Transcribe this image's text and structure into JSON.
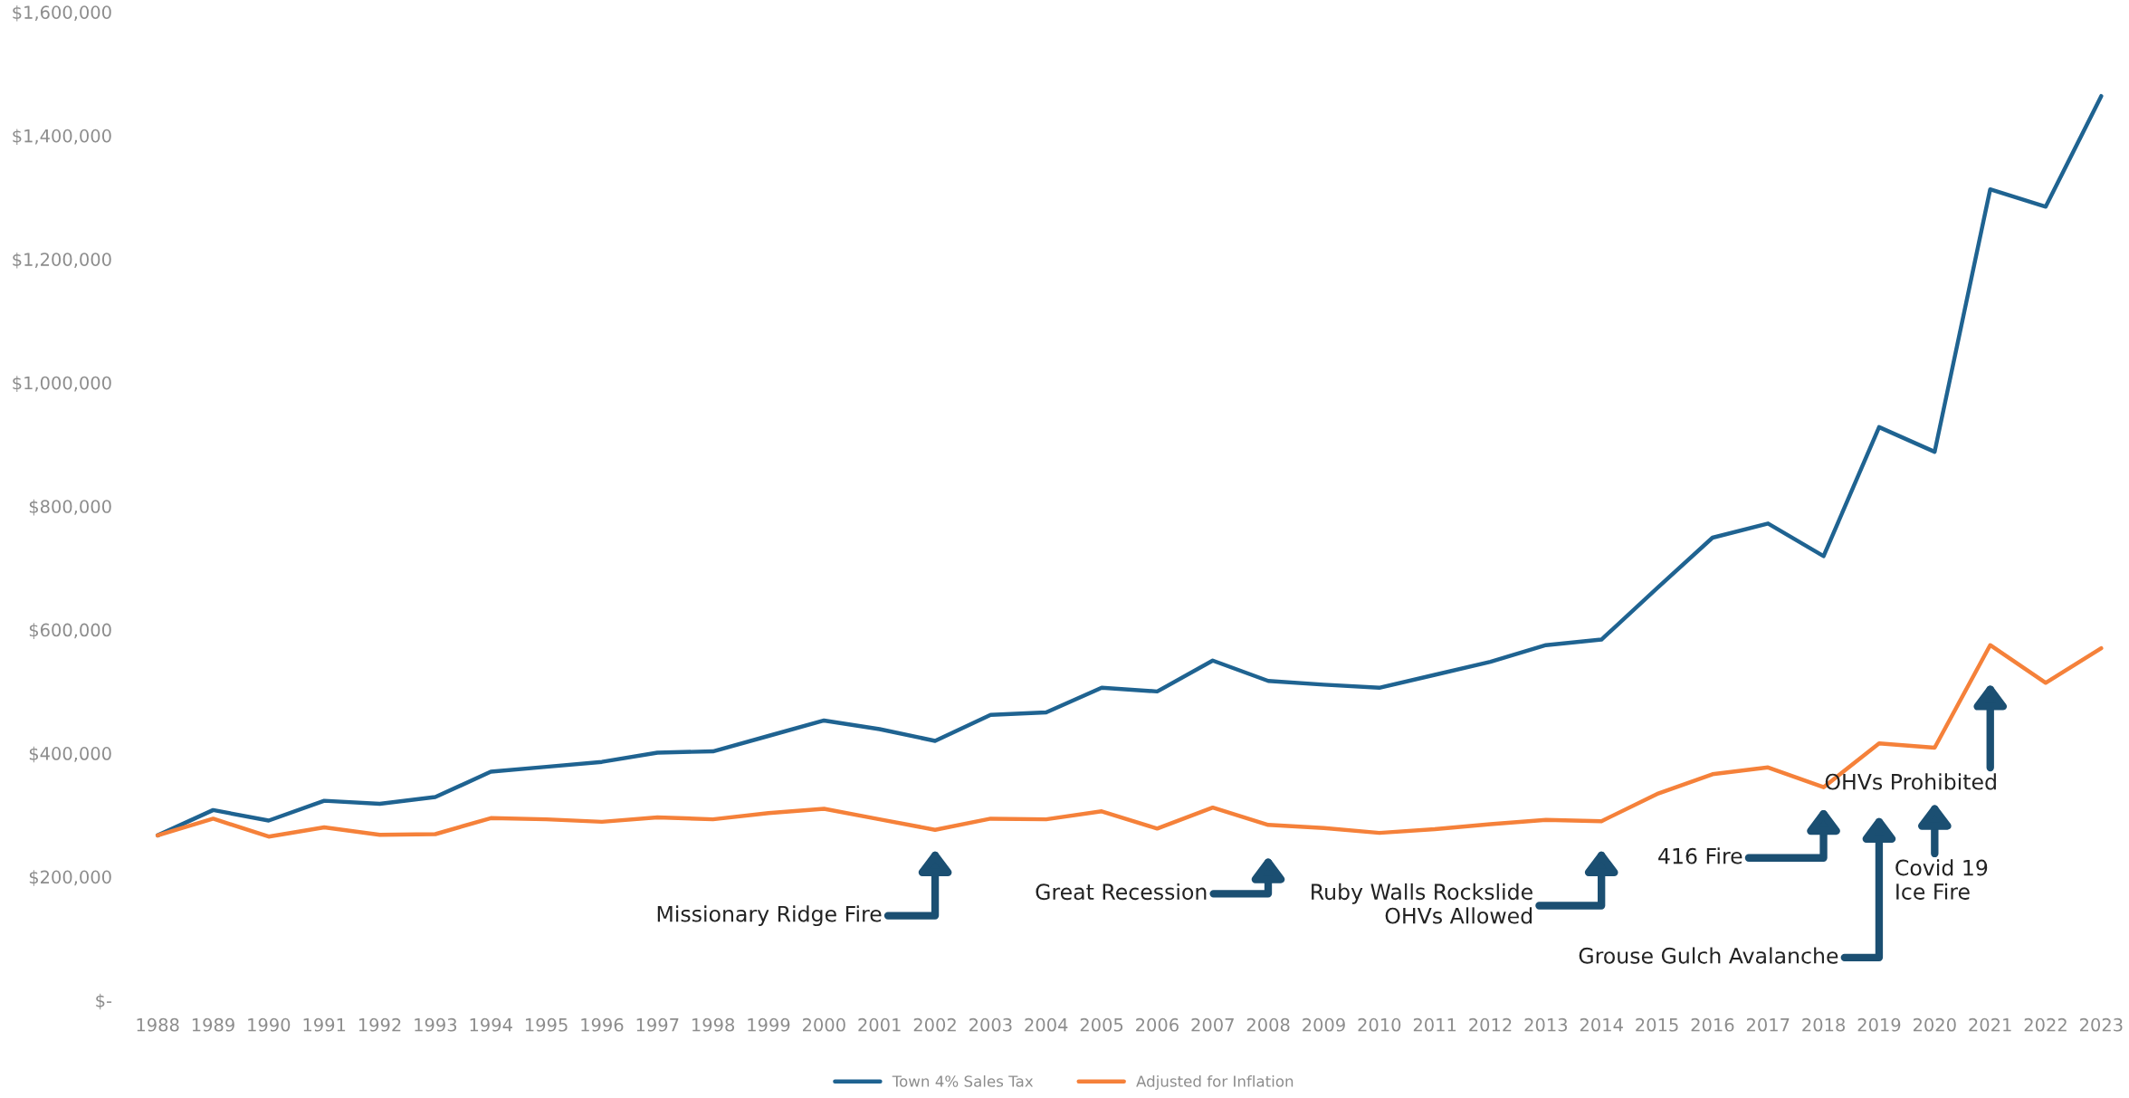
{
  "chart_data": {
    "type": "line",
    "categories": [
      "1988",
      "1989",
      "1990",
      "1991",
      "1992",
      "1993",
      "1994",
      "1995",
      "1996",
      "1997",
      "1998",
      "1999",
      "2000",
      "2001",
      "2002",
      "2003",
      "2004",
      "2005",
      "2006",
      "2007",
      "2008",
      "2009",
      "2010",
      "2011",
      "2012",
      "2013",
      "2014",
      "2015",
      "2016",
      "2017",
      "2018",
      "2019",
      "2020",
      "2021",
      "2022",
      "2023"
    ],
    "series": [
      {
        "name": "Town 4% Sales Tax",
        "color": "#1f6391",
        "values": [
          267000,
          308000,
          291000,
          323000,
          318000,
          329000,
          370000,
          378000,
          386000,
          401000,
          403000,
          428000,
          453000,
          439000,
          420000,
          462000,
          466000,
          506000,
          500000,
          550000,
          517000,
          511000,
          506000,
          527000,
          548000,
          575000,
          584000,
          667000,
          749000,
          772000,
          719000,
          928000,
          888000,
          1313000,
          1285000,
          1464000
        ]
      },
      {
        "name": "Adjusted for Inflation",
        "color": "#f5813a",
        "values": [
          267000,
          294000,
          265000,
          280000,
          268000,
          269000,
          295000,
          293000,
          289000,
          296000,
          293000,
          303000,
          310000,
          293000,
          276000,
          294000,
          293000,
          306000,
          278000,
          312000,
          284000,
          279000,
          271000,
          277000,
          285000,
          292000,
          290000,
          334000,
          366000,
          377000,
          345000,
          416000,
          409000,
          575000,
          514000,
          570000
        ]
      }
    ],
    "ylim": [
      0,
      1600000
    ],
    "yticks": [
      {
        "value": 0,
        "label": "$-"
      },
      {
        "value": 200000,
        "label": "$200,000"
      },
      {
        "value": 400000,
        "label": "$400,000"
      },
      {
        "value": 600000,
        "label": "$600,000"
      },
      {
        "value": 800000,
        "label": "$800,000"
      },
      {
        "value": 1000000,
        "label": "$1,000,000"
      },
      {
        "value": 1200000,
        "label": "$1,200,000"
      },
      {
        "value": 1400000,
        "label": "$1,400,000"
      },
      {
        "value": 1600000,
        "label": "$1,600,000"
      }
    ],
    "annotations": [
      "Missionary Ridge Fire",
      "Great Recession",
      "Ruby Walls Rockslide\nOHVs Allowed",
      "416 Fire",
      "Grouse Gulch Avalanche",
      "Covid 19\nIce Fire",
      "OHVs Prohibited"
    ],
    "legend": "bottom",
    "grid": false,
    "marker": "none",
    "line_style": "solid"
  }
}
